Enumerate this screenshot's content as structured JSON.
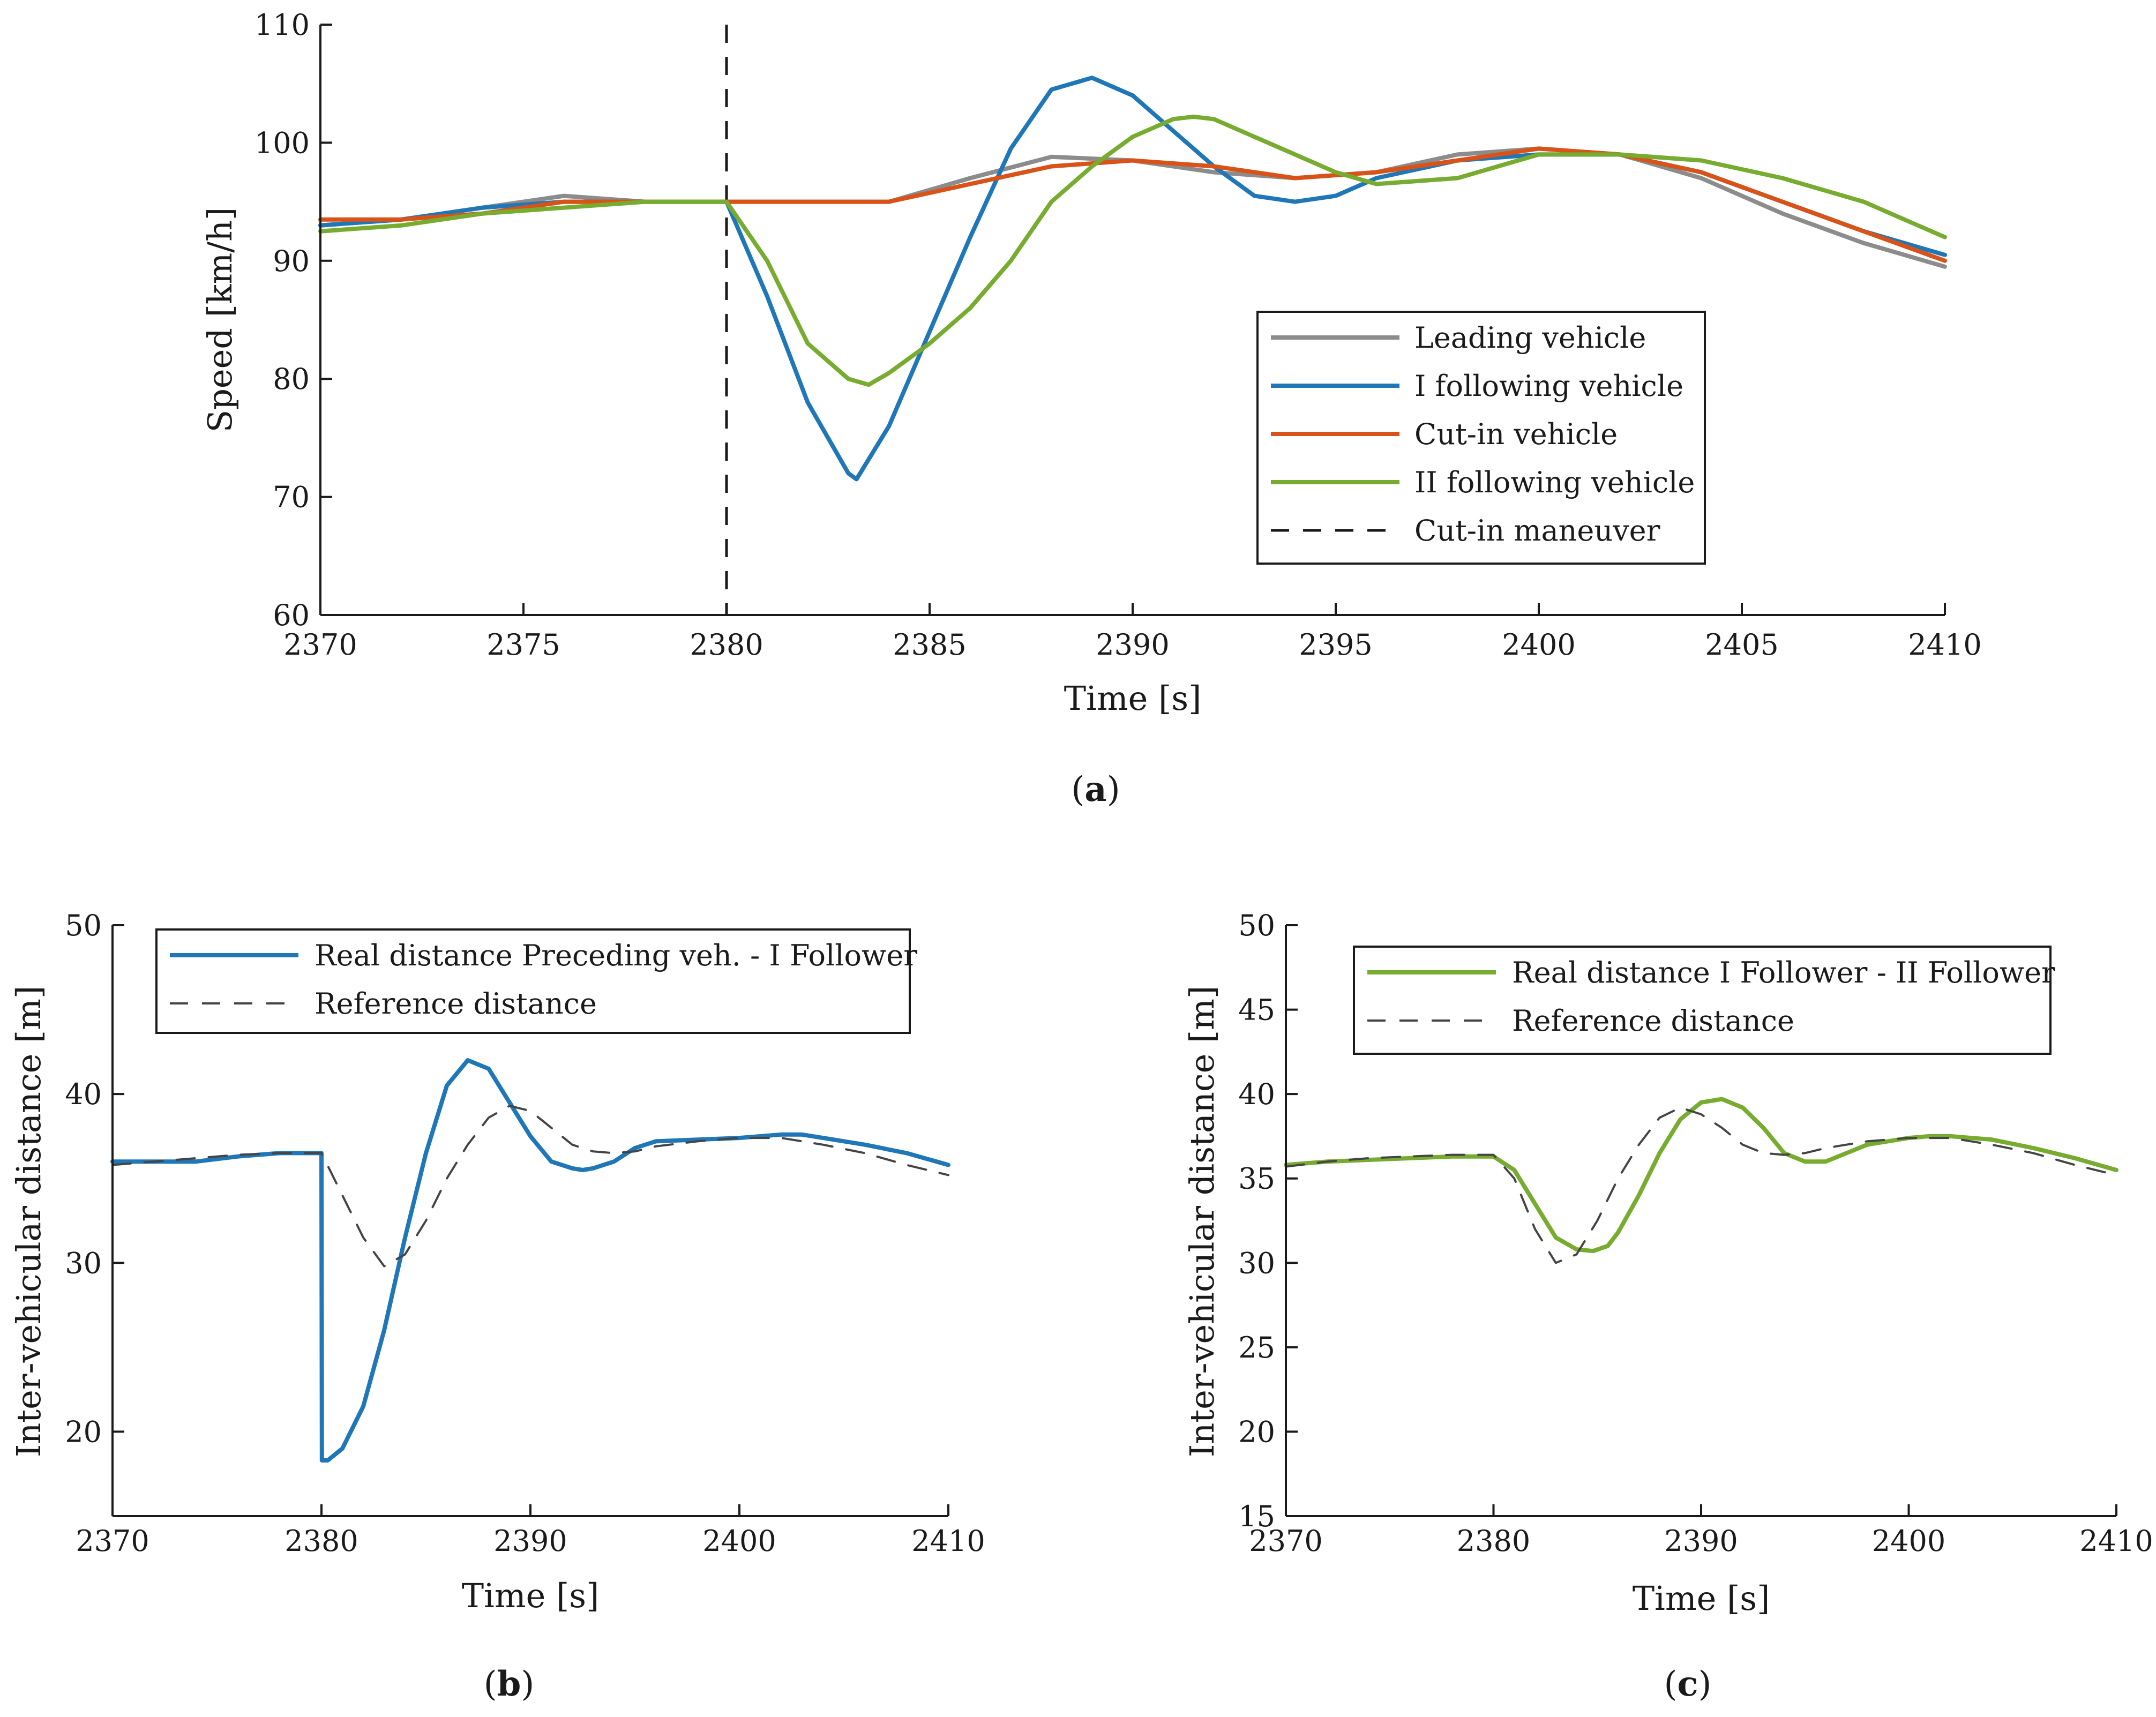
{
  "chart_data": [
    {
      "id": "a",
      "type": "line",
      "caption": "(a)",
      "caption_letter": "a",
      "xlabel": "Time [s]",
      "ylabel": "Speed [km/h]",
      "xlim": [
        2370,
        2410
      ],
      "ylim": [
        60,
        110
      ],
      "xticks": [
        2370,
        2375,
        2380,
        2385,
        2390,
        2395,
        2400,
        2405,
        2410
      ],
      "yticks": [
        60,
        70,
        80,
        90,
        100,
        110
      ],
      "legend_position": "right-center",
      "series": [
        {
          "name": "Leading vehicle",
          "color": "#8c8c8c",
          "dash": "solid",
          "x": [
            2370,
            2372,
            2374,
            2376,
            2378,
            2380,
            2382,
            2384,
            2386,
            2388,
            2390,
            2392,
            2394,
            2396,
            2398,
            2400,
            2402,
            2404,
            2406,
            2408,
            2410
          ],
          "y": [
            93.0,
            93.5,
            94.5,
            95.5,
            95.0,
            95.0,
            95.0,
            95.0,
            97.0,
            98.8,
            98.5,
            97.5,
            97.0,
            97.5,
            99.0,
            99.5,
            99.0,
            97.0,
            94.0,
            91.5,
            89.5
          ]
        },
        {
          "name": "I following vehicle",
          "color": "#1f77b8",
          "dash": "solid",
          "x": [
            2370,
            2372,
            2374,
            2376,
            2378,
            2380,
            2381,
            2382,
            2383,
            2383.2,
            2384,
            2385,
            2386,
            2387,
            2388,
            2389,
            2390,
            2391,
            2392,
            2393,
            2394,
            2395,
            2396,
            2398,
            2400,
            2402,
            2404,
            2406,
            2408,
            2410
          ],
          "y": [
            93.0,
            93.5,
            94.5,
            95.0,
            95.0,
            95.0,
            87.0,
            78.0,
            72.0,
            71.5,
            76.0,
            84.0,
            92.0,
            99.5,
            104.5,
            105.5,
            104.0,
            101.0,
            98.0,
            95.5,
            95.0,
            95.5,
            97.0,
            98.5,
            99.0,
            99.0,
            97.5,
            95.0,
            92.5,
            90.5
          ]
        },
        {
          "name": "Cut-in vehicle",
          "color": "#d95319",
          "dash": "solid",
          "x": [
            2370,
            2372,
            2374,
            2376,
            2378,
            2380,
            2382,
            2384,
            2386,
            2388,
            2390,
            2392,
            2394,
            2396,
            2398,
            2400,
            2402,
            2404,
            2406,
            2408,
            2410
          ],
          "y": [
            93.5,
            93.5,
            94.0,
            95.0,
            95.0,
            95.0,
            95.0,
            95.0,
            96.5,
            98.0,
            98.5,
            98.0,
            97.0,
            97.5,
            98.5,
            99.5,
            99.0,
            97.5,
            95.0,
            92.5,
            90.0
          ]
        },
        {
          "name": "II following vehicle",
          "color": "#77ac30",
          "dash": "solid",
          "x": [
            2370,
            2372,
            2374,
            2376,
            2378,
            2380,
            2381,
            2382,
            2383,
            2383.5,
            2384,
            2385,
            2386,
            2387,
            2388,
            2389,
            2390,
            2391,
            2391.5,
            2392,
            2393,
            2394,
            2395,
            2396,
            2398,
            2400,
            2402,
            2404,
            2406,
            2408,
            2410
          ],
          "y": [
            92.5,
            93.0,
            94.0,
            94.5,
            95.0,
            95.0,
            90.0,
            83.0,
            80.0,
            79.5,
            80.5,
            83.0,
            86.0,
            90.0,
            95.0,
            98.0,
            100.5,
            102.0,
            102.2,
            102.0,
            100.5,
            99.0,
            97.5,
            96.5,
            97.0,
            99.0,
            99.0,
            98.5,
            97.0,
            95.0,
            92.0
          ]
        }
      ],
      "events": [
        {
          "name": "Cut-in maneuver",
          "x": 2380,
          "color": "#1a1a1a",
          "dash": "dashed"
        }
      ]
    },
    {
      "id": "b",
      "type": "line",
      "caption": "(b)",
      "caption_letter": "b",
      "xlabel": "Time [s]",
      "ylabel": "Inter-vehicular distance [m]",
      "xlim": [
        2370,
        2410
      ],
      "ylim": [
        15,
        50
      ],
      "xticks": [
        2370,
        2380,
        2390,
        2400,
        2410
      ],
      "yticks": [
        20,
        30,
        40,
        50
      ],
      "legend_position": "top",
      "series": [
        {
          "name": "Real distance Preceding veh. - I Follower",
          "color": "#1f77b8",
          "dash": "solid",
          "x": [
            2370,
            2372,
            2374,
            2376,
            2378,
            2380,
            2380.02,
            2380.3,
            2381,
            2382,
            2383,
            2384,
            2385,
            2386,
            2387,
            2388,
            2389,
            2390,
            2391,
            2392,
            2392.5,
            2393,
            2394,
            2395,
            2396,
            2398,
            2400,
            2402,
            2403,
            2404,
            2406,
            2408,
            2410
          ],
          "y": [
            36.0,
            36.0,
            36.0,
            36.3,
            36.5,
            36.5,
            18.3,
            18.3,
            19.0,
            21.5,
            26.0,
            31.5,
            36.5,
            40.5,
            42.0,
            41.5,
            39.5,
            37.5,
            36.0,
            35.6,
            35.5,
            35.6,
            36.0,
            36.8,
            37.2,
            37.3,
            37.4,
            37.6,
            37.6,
            37.4,
            37.0,
            36.5,
            35.8
          ]
        },
        {
          "name": "Reference distance",
          "color": "#444444",
          "dash": "dashed",
          "x": [
            2370,
            2372,
            2374,
            2376,
            2378,
            2380,
            2381,
            2382,
            2383,
            2384,
            2385,
            2386,
            2387,
            2388,
            2389,
            2390,
            2391,
            2392,
            2393,
            2394,
            2395,
            2396,
            2398,
            2400,
            2402,
            2404,
            2406,
            2408,
            2410
          ],
          "y": [
            35.8,
            36.0,
            36.2,
            36.4,
            36.5,
            36.5,
            34.0,
            31.5,
            29.8,
            30.5,
            32.5,
            35.0,
            37.0,
            38.6,
            39.3,
            39.0,
            38.0,
            37.0,
            36.6,
            36.5,
            36.6,
            36.9,
            37.2,
            37.4,
            37.4,
            37.0,
            36.5,
            35.8,
            35.2
          ]
        }
      ]
    },
    {
      "id": "c",
      "type": "line",
      "caption": "(c)",
      "caption_letter": "c",
      "xlabel": "Time [s]",
      "ylabel": "Inter-vehicular distance [m]",
      "xlim": [
        2370,
        2410
      ],
      "ylim": [
        15,
        50
      ],
      "xticks": [
        2370,
        2380,
        2390,
        2400,
        2410
      ],
      "yticks": [
        15,
        20,
        25,
        30,
        35,
        40,
        45,
        50
      ],
      "legend_position": "top",
      "series": [
        {
          "name": "Real distance I Follower - II Follower",
          "color": "#77ac30",
          "dash": "solid",
          "x": [
            2370,
            2372,
            2374,
            2376,
            2378,
            2380,
            2381,
            2382,
            2383,
            2384,
            2384.8,
            2385.5,
            2386,
            2387,
            2388,
            2389,
            2390,
            2391,
            2392,
            2393,
            2394,
            2395,
            2396,
            2397,
            2398,
            2400,
            2401,
            2402,
            2404,
            2406,
            2408,
            2410
          ],
          "y": [
            35.8,
            36.0,
            36.1,
            36.2,
            36.3,
            36.3,
            35.5,
            33.5,
            31.5,
            30.8,
            30.7,
            31.0,
            31.8,
            34.0,
            36.5,
            38.5,
            39.5,
            39.7,
            39.2,
            38.0,
            36.5,
            36.0,
            36.0,
            36.5,
            37.0,
            37.4,
            37.5,
            37.5,
            37.3,
            36.8,
            36.2,
            35.5
          ]
        },
        {
          "name": "Reference distance",
          "color": "#444444",
          "dash": "dashed",
          "x": [
            2370,
            2372,
            2374,
            2376,
            2378,
            2380,
            2381,
            2382,
            2383,
            2384,
            2385,
            2386,
            2387,
            2388,
            2389,
            2390,
            2391,
            2392,
            2393,
            2394,
            2395,
            2396,
            2398,
            2400,
            2402,
            2404,
            2406,
            2408,
            2410
          ],
          "y": [
            35.7,
            36.0,
            36.2,
            36.3,
            36.4,
            36.4,
            35.0,
            32.0,
            30.0,
            30.5,
            32.5,
            35.0,
            37.0,
            38.6,
            39.2,
            38.8,
            38.0,
            37.0,
            36.5,
            36.4,
            36.5,
            36.8,
            37.2,
            37.4,
            37.4,
            37.0,
            36.5,
            35.8,
            35.2
          ]
        }
      ]
    }
  ]
}
